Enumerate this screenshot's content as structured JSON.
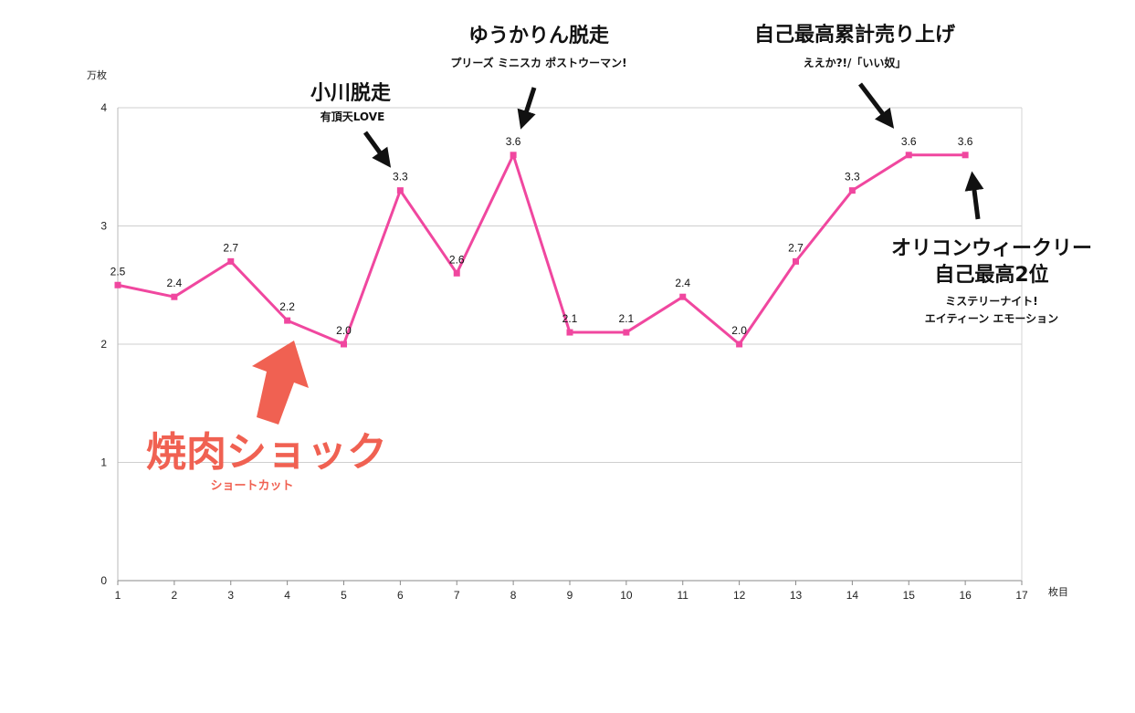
{
  "chart_data": {
    "type": "line",
    "x": [
      1,
      2,
      3,
      4,
      5,
      6,
      7,
      8,
      9,
      10,
      11,
      12,
      13,
      14,
      15,
      16
    ],
    "series": [
      {
        "values": [
          2.5,
          2.4,
          2.7,
          2.2,
          2.0,
          3.3,
          2.6,
          3.6,
          2.1,
          2.1,
          2.4,
          2.0,
          2.7,
          3.3,
          3.6,
          3.6
        ]
      }
    ],
    "data_labels": [
      "2.5",
      "2.4",
      "2.7",
      "2.2",
      "2.0",
      "3.3",
      "2.6",
      "3.6",
      "2.1",
      "2.1",
      "2.4",
      "2.0",
      "2.7",
      "3.3",
      "3.6",
      "3.6"
    ],
    "xlabel": "枚目",
    "ylabel": "万枚",
    "xlim": [
      1,
      17
    ],
    "ylim": [
      0,
      4
    ],
    "xticks": [
      1,
      2,
      3,
      4,
      5,
      6,
      7,
      8,
      9,
      10,
      11,
      12,
      13,
      14,
      15,
      16,
      17
    ],
    "yticks": [
      0,
      1,
      2,
      3,
      4
    ],
    "grid": true,
    "line_color": "#f0479f",
    "accent_color": "#f06152",
    "annotations": [
      {
        "id": "yakiniku",
        "title": "焼肉ショック",
        "subtitle": "ショートカット",
        "target_x": 4,
        "color": "#f06152",
        "arrow": "big-up"
      },
      {
        "id": "ogawa",
        "title": "小川脱走",
        "subtitle": "有頂天LOVE",
        "target_x": 6,
        "color": "#111111",
        "arrow": "down-right"
      },
      {
        "id": "yukarin",
        "title": "ゆうかりん脱走",
        "subtitle": "プリーズ ミニスカ ポストウーマン!",
        "target_x": 8,
        "color": "#111111",
        "arrow": "down"
      },
      {
        "id": "record-sales",
        "title": "自己最高累計売り上げ",
        "subtitle": "ええか?!/「いい奴」",
        "target_x": 15,
        "color": "#111111",
        "arrow": "down-right"
      },
      {
        "id": "oricon",
        "title_lines": [
          "オリコンウィークリー",
          "自己最高2位"
        ],
        "subtitle_lines": [
          "ミステリーナイト!",
          "エイティーン エモーション"
        ],
        "target_x": 16,
        "color": "#111111",
        "arrow": "up"
      }
    ]
  }
}
